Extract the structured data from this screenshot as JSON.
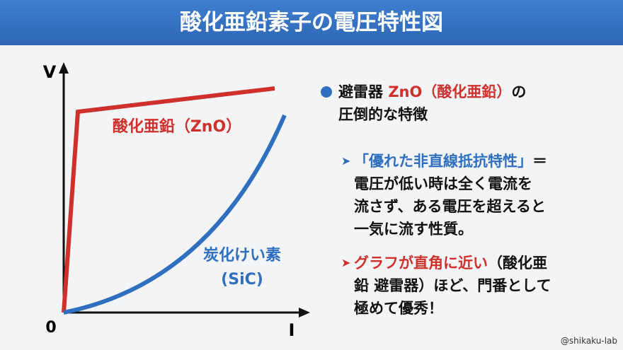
{
  "header": {
    "title": "酸化亜鉛素子の電圧特性図"
  },
  "chart": {
    "y_axis_label": "V",
    "x_axis_label": "I",
    "origin_label": "0",
    "zno_label": "酸化亜鉛（ZnO）",
    "sic_label_line1": "炭化けい素",
    "sic_label_line2": "(SiC)"
  },
  "points": [
    {
      "lines": [
        [
          "避雷器 ",
          "ZnO（酸化亜鉛）",
          "の"
        ],
        [
          "圧倒的な特徴"
        ]
      ]
    },
    {
      "lines": [
        [
          "「優れた非直線抵抗特性」",
          "＝"
        ],
        [
          "電圧が低い時は全く電流を"
        ],
        [
          "流さず、ある電圧を超えると"
        ],
        [
          "一気に流す性質。"
        ]
      ]
    },
    {
      "lines": [
        [
          "グラフが直角に近い",
          "（酸化亜"
        ],
        [
          "鉛 避雷器）ほど、門番として"
        ],
        [
          "極めて優秀！"
        ]
      ]
    }
  ],
  "footer": {
    "credit": "@shikaku-lab"
  }
}
